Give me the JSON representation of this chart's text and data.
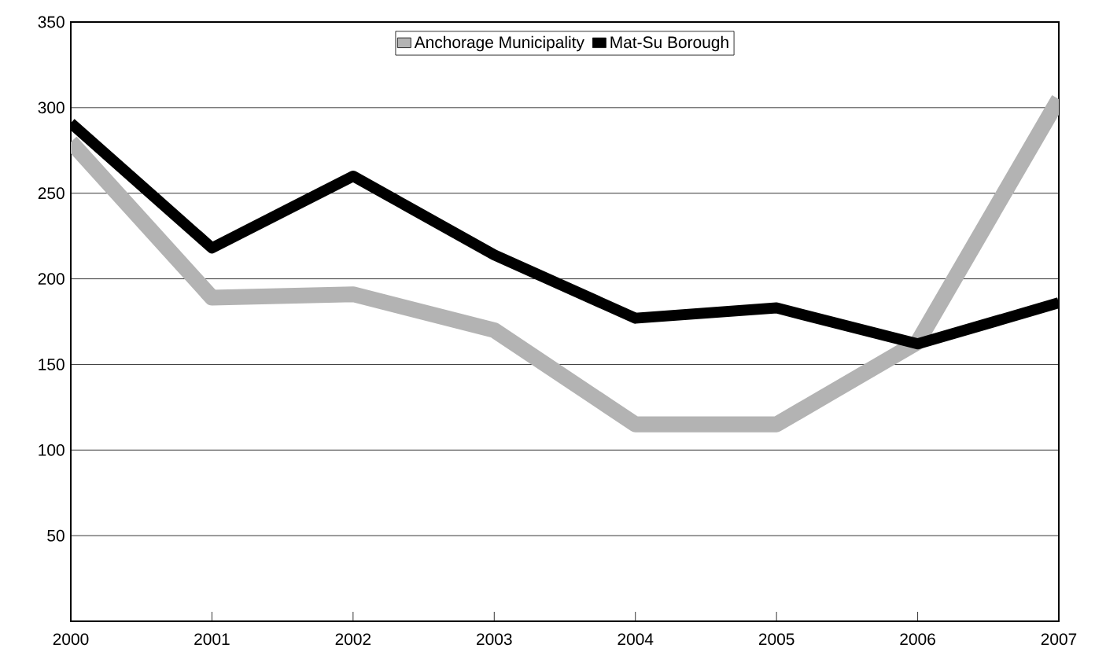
{
  "chart_data": {
    "type": "line",
    "categories": [
      "2000",
      "2001",
      "2002",
      "2003",
      "2004",
      "2005",
      "2006",
      "2007"
    ],
    "series": [
      {
        "name": "Anchorage Municipality",
        "color": "#b3b3b3",
        "values": [
          280,
          189,
          191,
          170,
          115,
          115,
          163,
          305
        ]
      },
      {
        "name": "Mat-Su Borough",
        "color": "#000000",
        "values": [
          291,
          218,
          260,
          214,
          177,
          183,
          162,
          186
        ]
      }
    ],
    "ylim": [
      0,
      350
    ],
    "yticks": [
      50,
      100,
      150,
      200,
      250,
      300,
      350
    ],
    "grid": "y",
    "legend": "top",
    "marker": "none",
    "line_style": "solid"
  }
}
